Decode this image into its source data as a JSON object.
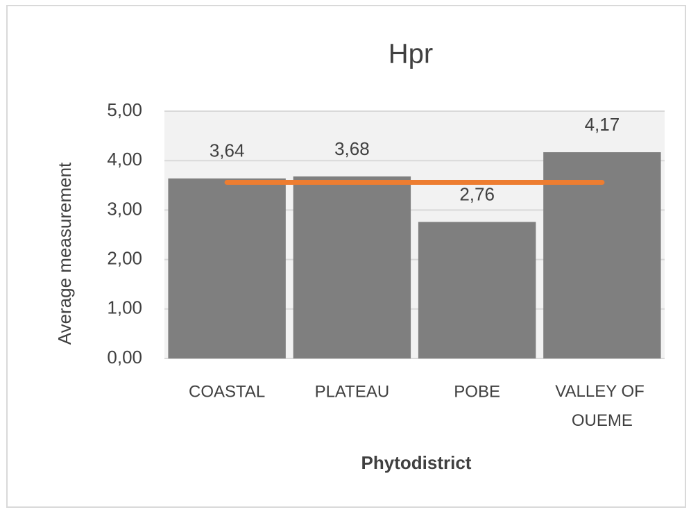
{
  "chart_data": {
    "type": "bar",
    "title": "Hpr",
    "x_label": "Phytodistrict",
    "y_label": "Average measurement",
    "categories": [
      "COASTAL",
      "PLATEAU",
      "POBE",
      "VALLEY OF OUEME"
    ],
    "series": [
      {
        "type": "bar",
        "color": "#7f7f7f",
        "values": [
          3.64,
          3.68,
          2.76,
          4.17
        ],
        "value_labels": [
          "3,64",
          "3,68",
          "2,76",
          "4,17"
        ]
      },
      {
        "type": "line",
        "color": "#ed7d31",
        "values": [
          3.56,
          3.56,
          3.56,
          3.56
        ]
      }
    ],
    "ylim": [
      0,
      5
    ],
    "yticks": [
      {
        "value": 0,
        "label": "0,00"
      },
      {
        "value": 1,
        "label": "1,00"
      },
      {
        "value": 2,
        "label": "2,00"
      },
      {
        "value": 3,
        "label": "3,00"
      },
      {
        "value": 4,
        "label": "4,00"
      },
      {
        "value": 5,
        "label": "5,00"
      }
    ],
    "grid": true
  }
}
